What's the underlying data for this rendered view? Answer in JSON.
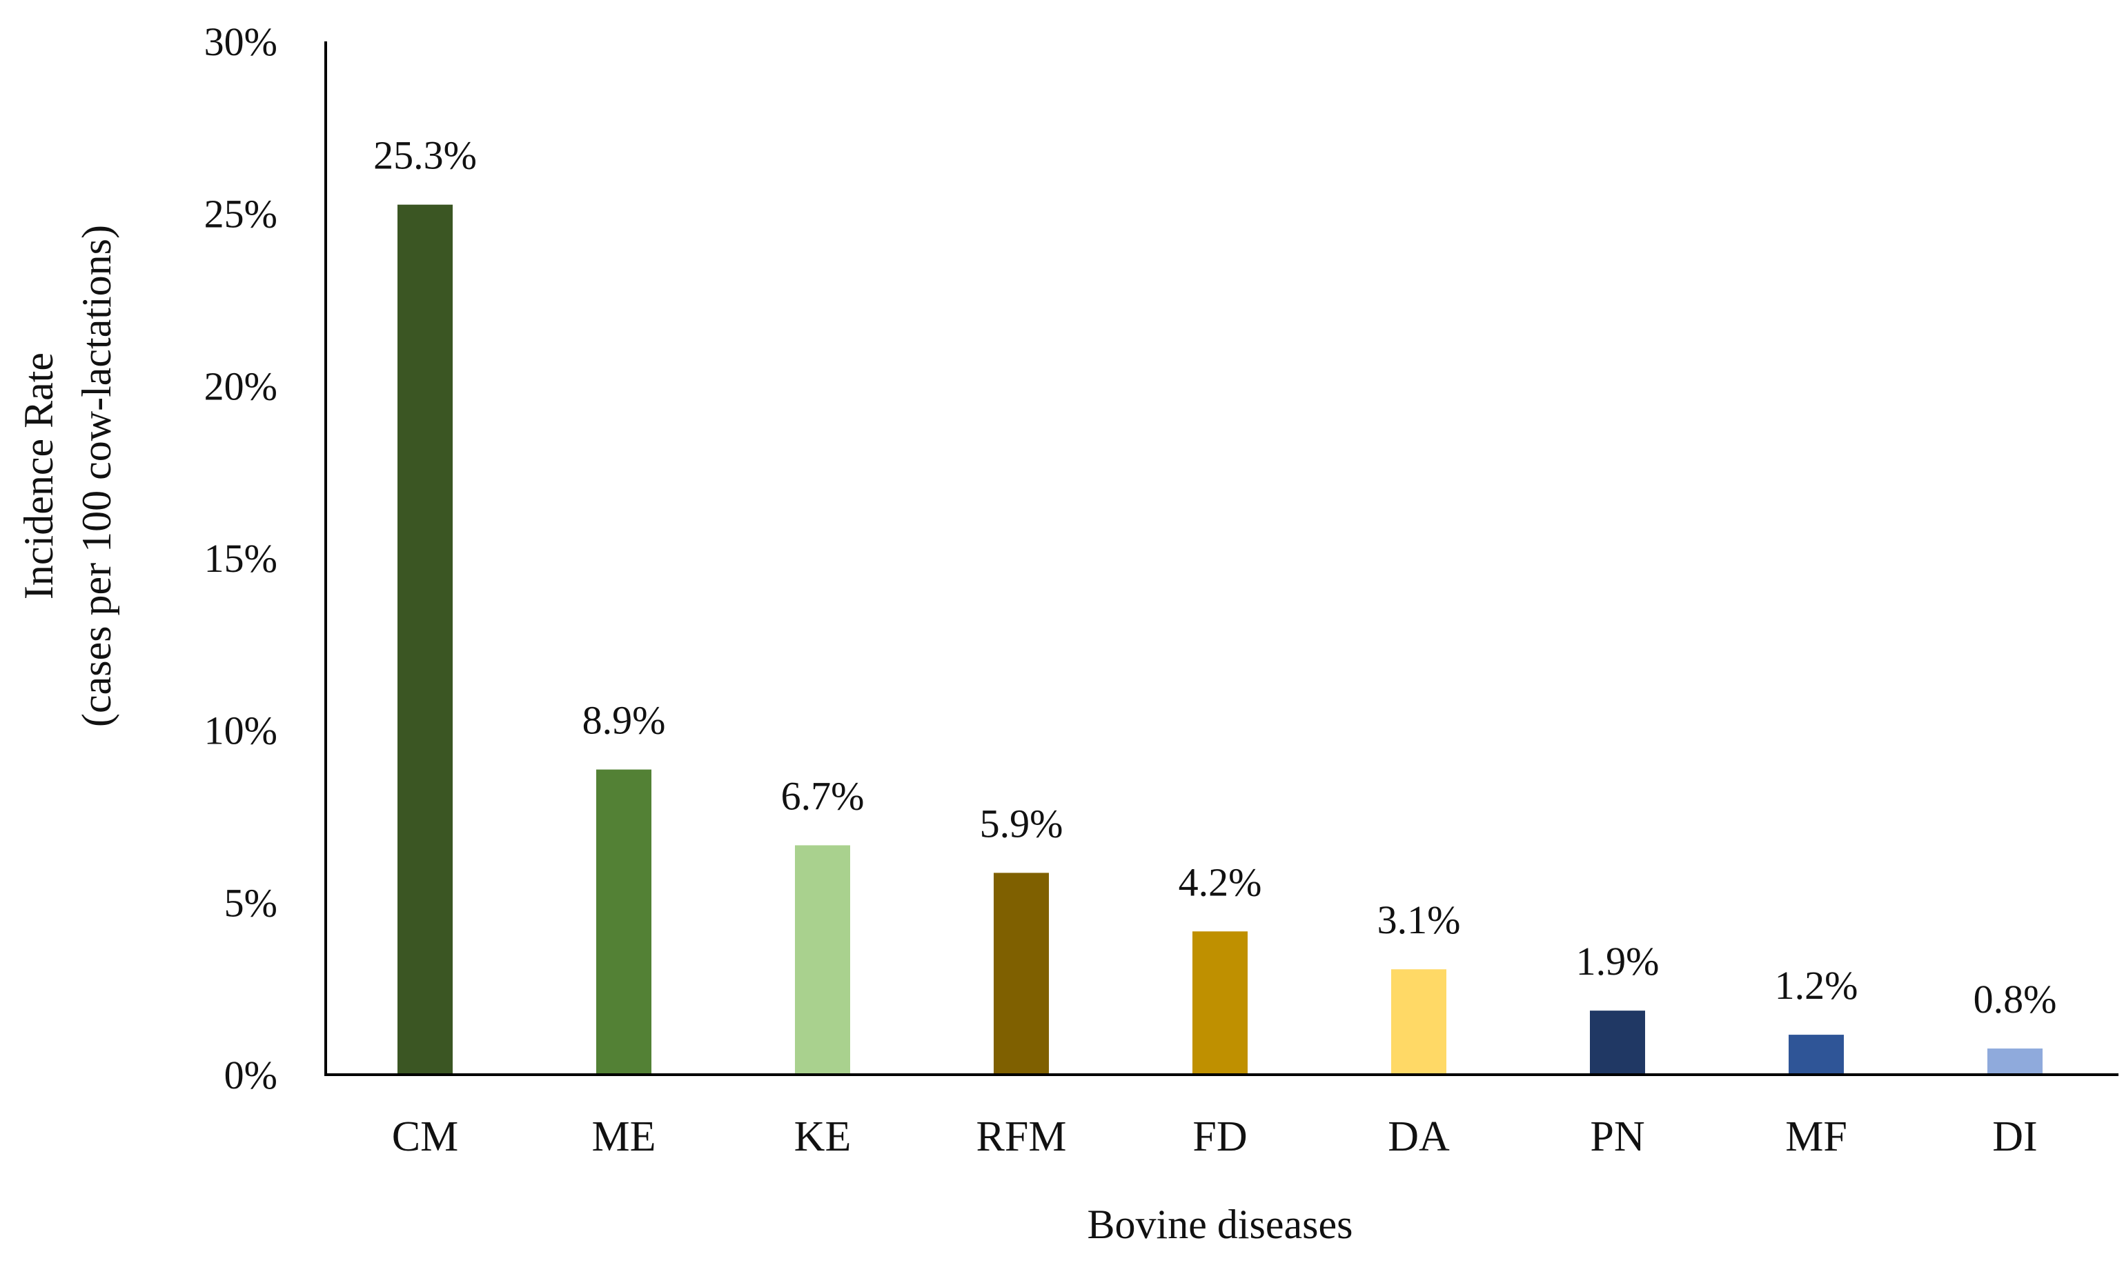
{
  "chart_data": {
    "type": "bar",
    "title": "",
    "xlabel": "Bovine diseases",
    "ylabel": "Incidence Rate",
    "ylabel_sub": "(cases per 100 cow-lactations)",
    "ylim": [
      0,
      30
    ],
    "yticks": [
      0,
      5,
      10,
      15,
      20,
      25,
      30
    ],
    "ytick_labels": [
      "0%",
      "5%",
      "10%",
      "15%",
      "20%",
      "25%",
      "30%"
    ],
    "grid": false,
    "legend": "none",
    "categories": [
      "CM",
      "ME",
      "KE",
      "RFM",
      "FD",
      "DA",
      "PN",
      "MF",
      "DI"
    ],
    "values": [
      25.3,
      8.9,
      6.7,
      5.9,
      4.2,
      3.1,
      1.9,
      1.2,
      0.8
    ],
    "data_labels": [
      "25.3%",
      "8.9%",
      "6.7%",
      "5.9%",
      "4.2%",
      "3.1%",
      "1.9%",
      "1.2%",
      "0.8%"
    ],
    "colors": [
      "#3b5623",
      "#538135",
      "#a9d18e",
      "#7f6000",
      "#bf9000",
      "#ffd966",
      "#203864",
      "#2f5597",
      "#8faadc"
    ]
  }
}
